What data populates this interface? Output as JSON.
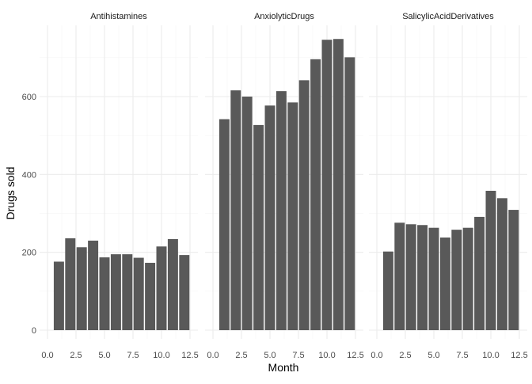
{
  "chart_data": {
    "type": "bar",
    "xlabel": "Month",
    "ylabel": "Drugs sold",
    "xlim": [
      0,
      12.5
    ],
    "ylim": [
      0,
      750
    ],
    "x_ticks": [
      0,
      2.5,
      5,
      7.5,
      10,
      12.5
    ],
    "x_tick_labels": [
      "0.0",
      "2.5",
      "5.0",
      "7.5",
      "10.0",
      "12.5"
    ],
    "y_ticks": [
      0,
      200,
      400,
      600
    ],
    "y_tick_labels": [
      "0",
      "200",
      "400",
      "600"
    ],
    "grid": true,
    "bar_color": "#595959",
    "panels": [
      {
        "title": "Antihistamines",
        "months": [
          1,
          2,
          3,
          4,
          5,
          6,
          7,
          8,
          9,
          10,
          11,
          12
        ],
        "values": [
          176,
          236,
          213,
          230,
          187,
          195,
          195,
          186,
          173,
          215,
          234,
          193
        ]
      },
      {
        "title": "AnxiolyticDrugs",
        "months": [
          1,
          2,
          3,
          4,
          5,
          6,
          7,
          8,
          9,
          10,
          11,
          12
        ],
        "values": [
          542,
          616,
          600,
          527,
          577,
          614,
          585,
          642,
          696,
          746,
          748,
          701
        ]
      },
      {
        "title": "SalicylicAcidDerivatives",
        "months": [
          1,
          2,
          3,
          4,
          5,
          6,
          7,
          8,
          9,
          10,
          11,
          12
        ],
        "values": [
          202,
          276,
          272,
          270,
          263,
          238,
          258,
          263,
          291,
          358,
          339,
          309
        ]
      }
    ]
  }
}
